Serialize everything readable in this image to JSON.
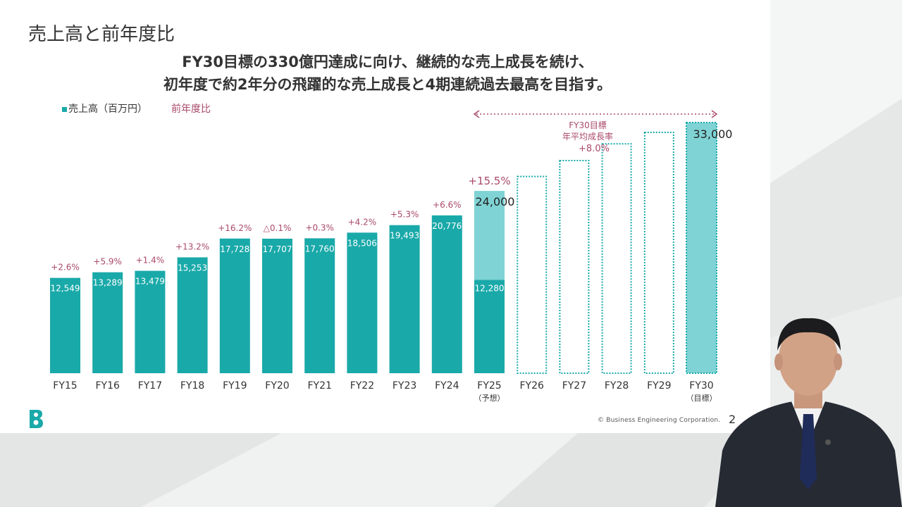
{
  "slide": {
    "title": "売上高と前年度比",
    "headline_line1": "FY30目標の330億円達成に向け、継続的な売上成長を続け、",
    "headline_line2": "初年度で約2年分の飛躍的な売上成長と4期連続過去最高を目指す。",
    "legend_sales": "売上高（百万円）",
    "legend_ratio": "前年度比",
    "target_label_1": "FY30目標",
    "target_label_2": "年平均成長率",
    "target_label_3": "+8.0%",
    "copyright": "© Business Engineering Corporation.",
    "page_number": "2",
    "logo": "b-logo-icon"
  },
  "colors": {
    "bar": "#1aa9a9",
    "bar_light": "#7fd3d5",
    "ratio_text": "#a94a6a",
    "axis_text": "#333333"
  },
  "chart_data": {
    "type": "bar",
    "categories": [
      "FY15",
      "FY16",
      "FY17",
      "FY18",
      "FY19",
      "FY20",
      "FY21",
      "FY22",
      "FY23",
      "FY24",
      "FY25",
      "FY26",
      "FY27",
      "FY28",
      "FY29",
      "FY30"
    ],
    "category_sublabels": [
      "",
      "",
      "",
      "",
      "",
      "",
      "",
      "",
      "",
      "",
      "（予想）",
      "",
      "",
      "",
      "",
      "（目標）"
    ],
    "series": [
      {
        "name": "売上高（百万円）",
        "values": [
          12549,
          13289,
          13479,
          15253,
          17728,
          17707,
          17760,
          18506,
          19493,
          20776,
          24000,
          null,
          null,
          null,
          null,
          33000
        ],
        "value_labels": [
          "12,549",
          "13,289",
          "13,479",
          "15,253",
          "17,728",
          "17,707",
          "17,760",
          "18,506",
          "19,493",
          "20,776",
          "24,000",
          "",
          "",
          "",
          "",
          "33,000"
        ]
      }
    ],
    "fy25_actual_portion": 12280,
    "fy25_actual_label": "12,280",
    "target_path_values": [
      null,
      null,
      null,
      null,
      null,
      null,
      null,
      null,
      null,
      null,
      null,
      25900,
      27990,
      30200,
      31700,
      null
    ],
    "yoy_ratio": [
      "+2.6%",
      "+5.9%",
      "+1.4%",
      "+13.2%",
      "+16.2%",
      "△0.1%",
      "+0.3%",
      "+4.2%",
      "+5.3%",
      "+6.6%",
      "+15.5%",
      "",
      "",
      "",
      "",
      ""
    ],
    "ylim": [
      0,
      33000
    ],
    "grid": false
  }
}
